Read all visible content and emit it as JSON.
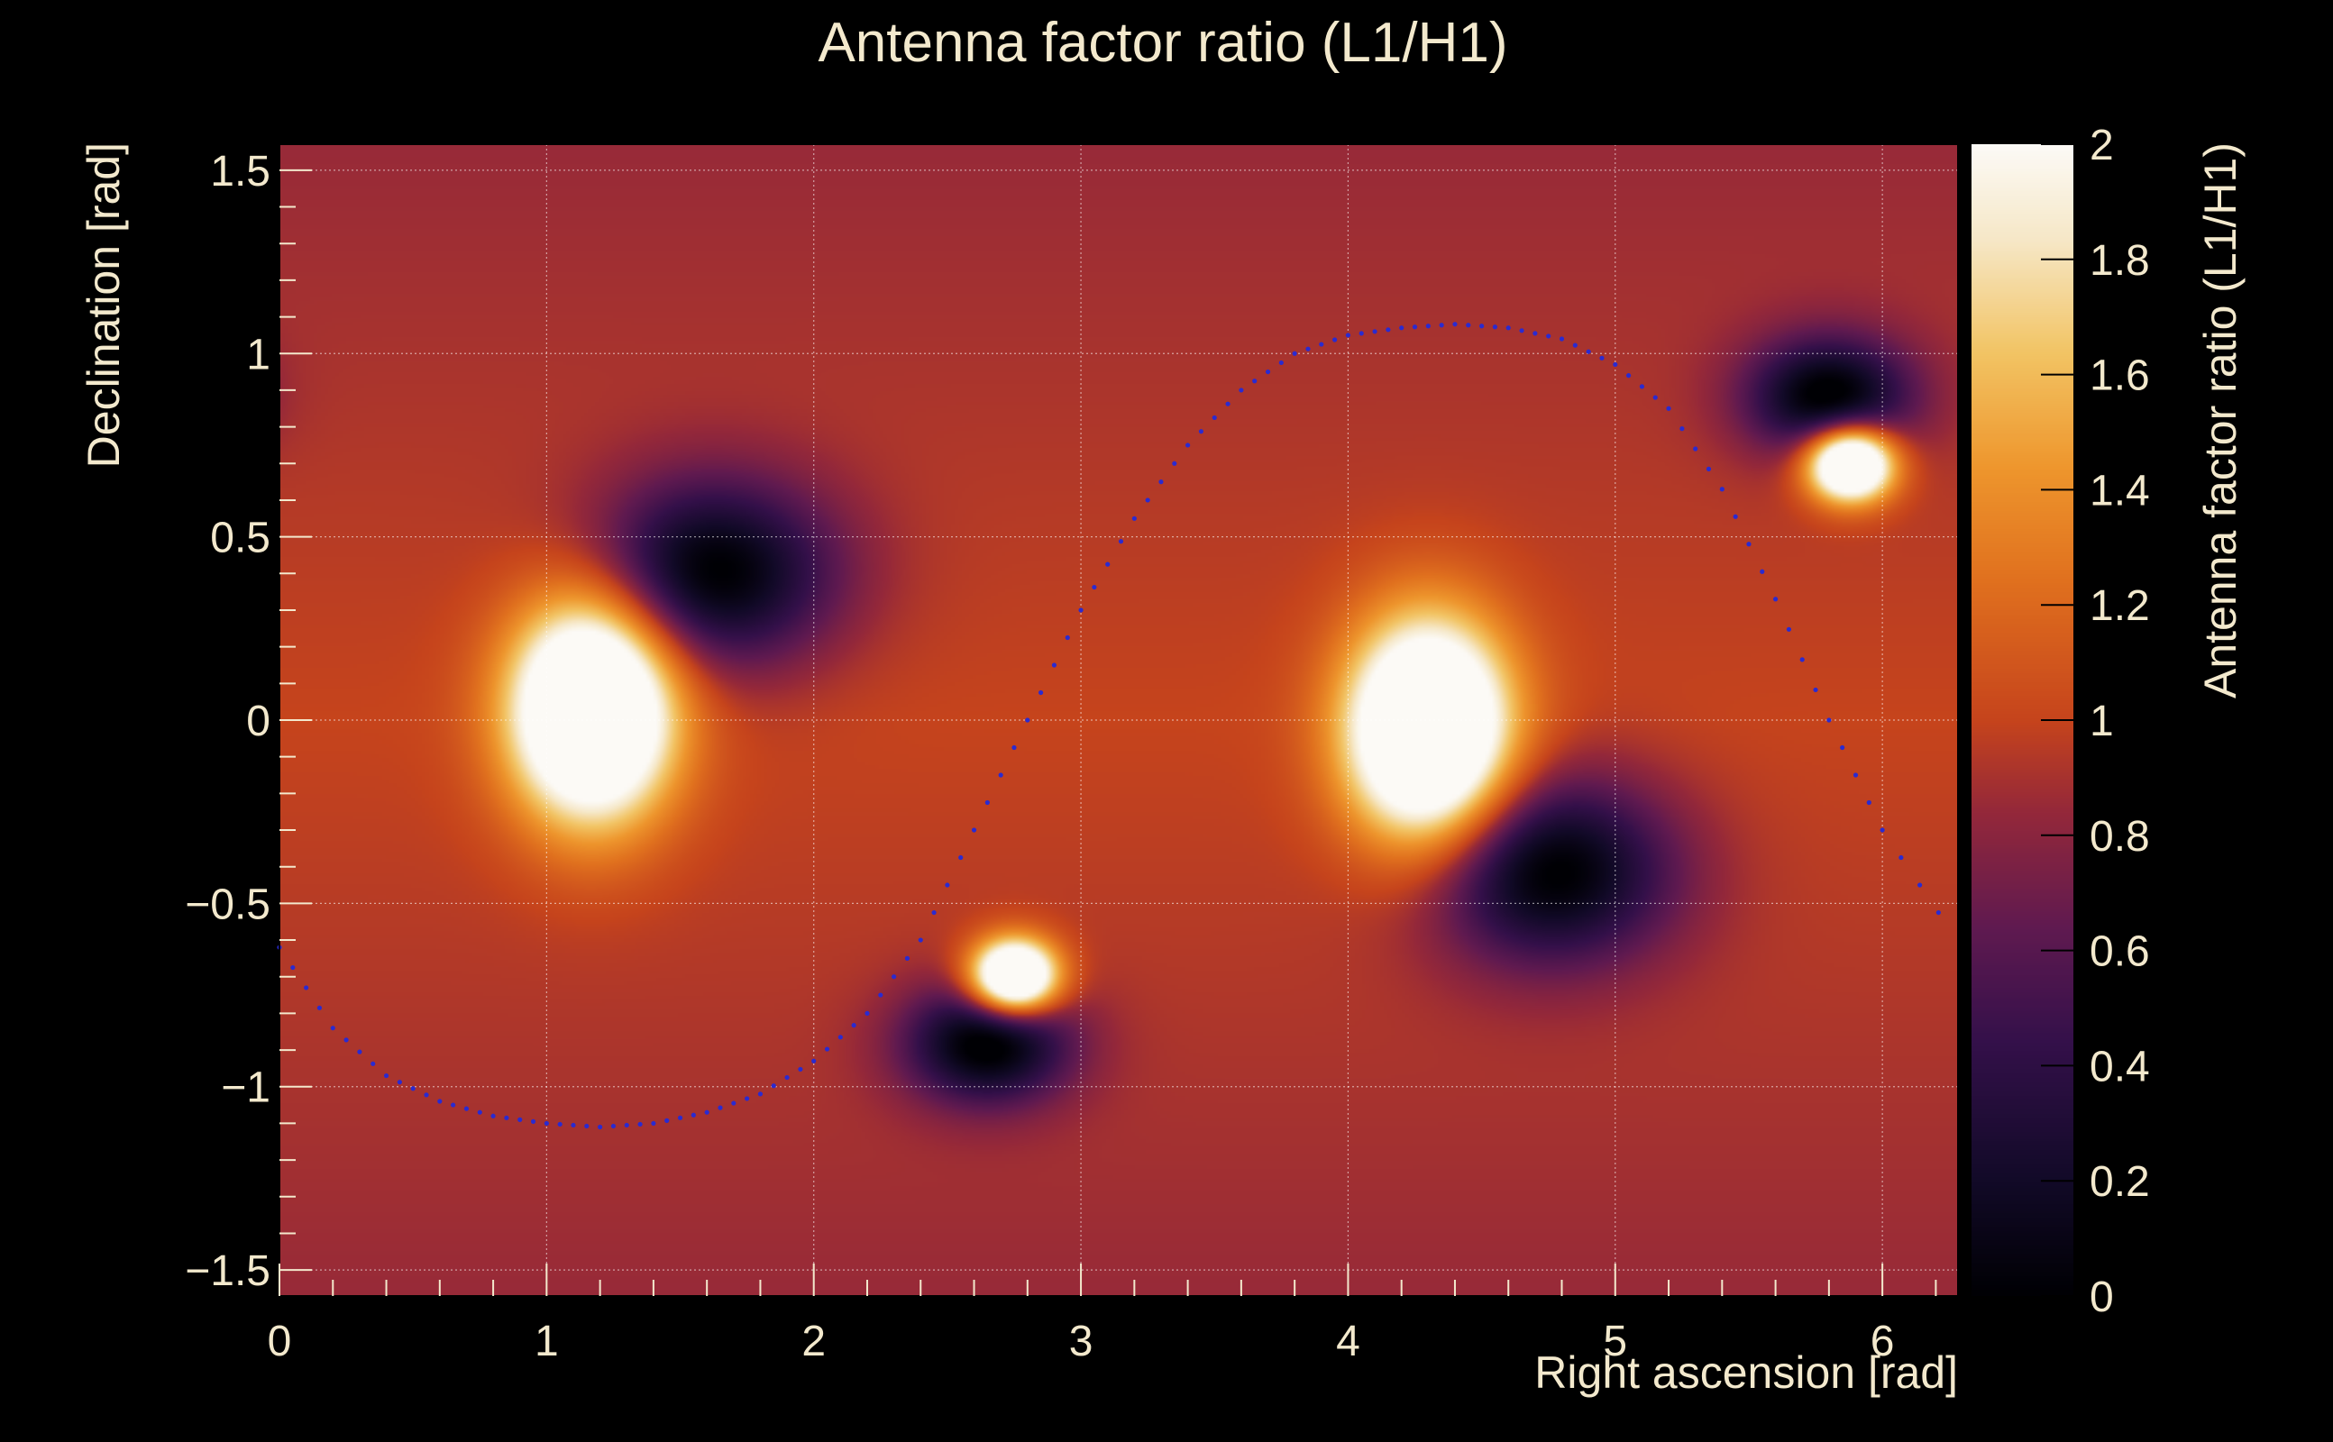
{
  "chart_data": {
    "type": "heatmap",
    "title": "Antenna factor ratio (L1/H1)",
    "xlabel": "Right ascension [rad]",
    "ylabel": "Declination [rad]",
    "colorbar_label": "Antenna factor ratio (L1/H1)",
    "xlim": [
      0,
      6.283
    ],
    "ylim": [
      -1.571,
      1.571
    ],
    "zlim": [
      0,
      2
    ],
    "x_ticks": [
      0,
      1,
      2,
      3,
      4,
      5,
      6
    ],
    "x_tick_labels": [
      "0",
      "1",
      "2",
      "3",
      "4",
      "5",
      "6"
    ],
    "y_ticks": [
      -1.5,
      -1,
      -0.5,
      0,
      0.5,
      1,
      1.5
    ],
    "y_tick_labels": [
      "−1.5",
      "−1",
      "−0.5",
      "0",
      "0.5",
      "1",
      "1.5"
    ],
    "z_ticks": [
      0,
      0.2,
      0.4,
      0.6,
      0.8,
      1,
      1.2,
      1.4,
      1.6,
      1.8,
      2
    ],
    "z_tick_labels": [
      "0",
      "0.2",
      "0.4",
      "0.6",
      "0.8",
      "1",
      "1.2",
      "1.4",
      "1.6",
      "1.8",
      "2"
    ],
    "grid": true,
    "colormap": "inferno-like",
    "background": 1.0,
    "features": [
      {
        "kind": "peak",
        "x": 1.17,
        "y": 0.03,
        "value": 2.0,
        "sx": 0.3,
        "sy": 0.3
      },
      {
        "kind": "peak",
        "x": 4.3,
        "y": -0.03,
        "value": 2.0,
        "sx": 0.3,
        "sy": 0.3
      },
      {
        "kind": "peak",
        "x": 2.75,
        "y": -0.7,
        "value": 2.0,
        "sx": 0.16,
        "sy": 0.1
      },
      {
        "kind": "peak",
        "x": 5.88,
        "y": 0.7,
        "value": 2.0,
        "sx": 0.16,
        "sy": 0.1
      },
      {
        "kind": "trough",
        "x": 1.62,
        "y": 0.4,
        "value": 0.0,
        "sx": 0.45,
        "sy": 0.25
      },
      {
        "kind": "trough",
        "x": 4.76,
        "y": -0.41,
        "value": 0.0,
        "sx": 0.45,
        "sy": 0.25
      },
      {
        "kind": "trough",
        "x": 2.65,
        "y": -0.88,
        "value": 0.0,
        "sx": 0.3,
        "sy": 0.16
      },
      {
        "kind": "trough",
        "x": 5.8,
        "y": 0.88,
        "value": 0.0,
        "sx": 0.3,
        "sy": 0.16
      }
    ],
    "overlay_curve": {
      "description": "dotted blue curve",
      "color": "#2a2ad0",
      "x": [
        0.0,
        0.2,
        0.4,
        0.6,
        0.8,
        1.0,
        1.2,
        1.4,
        1.6,
        1.8,
        2.0,
        2.2,
        2.4,
        2.6,
        2.8,
        3.0,
        3.2,
        3.4,
        3.6,
        3.8,
        4.0,
        4.2,
        4.4,
        4.6,
        4.8,
        5.0,
        5.2,
        5.4,
        5.6,
        5.8,
        6.0,
        6.28
      ],
      "y": [
        -0.62,
        -0.84,
        -0.97,
        -1.04,
        -1.08,
        -1.1,
        -1.11,
        -1.1,
        -1.07,
        -1.02,
        -0.93,
        -0.8,
        -0.6,
        -0.3,
        0.0,
        0.3,
        0.55,
        0.75,
        0.9,
        1.0,
        1.05,
        1.07,
        1.08,
        1.07,
        1.04,
        0.97,
        0.85,
        0.63,
        0.33,
        0.0,
        -0.3,
        -0.6
      ]
    }
  }
}
